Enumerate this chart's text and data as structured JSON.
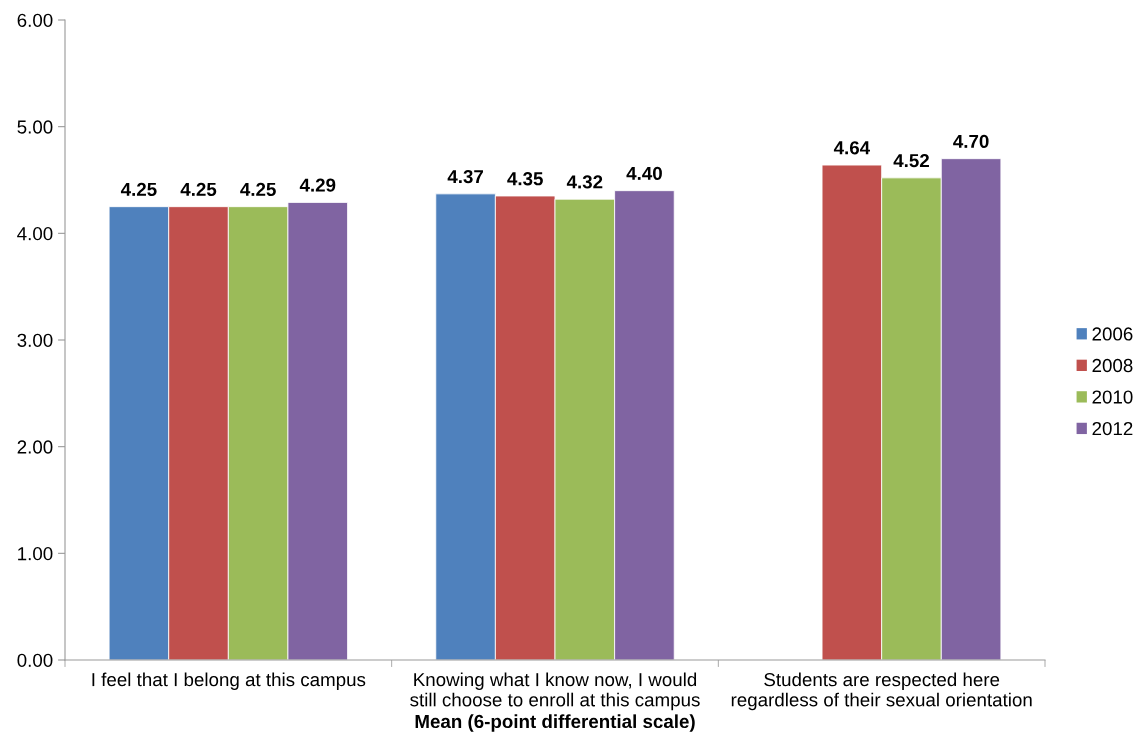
{
  "chart_data": {
    "type": "bar",
    "xlabel": "Mean (6-point differential scale)",
    "categories": [
      "I feel that I belong at this campus",
      "Knowing what I know now, I would\nstill choose to enroll at this campus",
      "Students are respected here\nregardless of their sexual orientation"
    ],
    "series": [
      {
        "name": "2006",
        "color": "#4f81bd",
        "values": [
          4.25,
          4.37,
          null
        ],
        "value_labels": [
          "4.25",
          "4.37",
          null
        ]
      },
      {
        "name": "2008",
        "color": "#c0504d",
        "values": [
          4.25,
          4.35,
          4.64
        ],
        "value_labels": [
          "4.25",
          "4.35",
          "4.64"
        ]
      },
      {
        "name": "2010",
        "color": "#9bbb59",
        "values": [
          4.25,
          4.32,
          4.52
        ],
        "value_labels": [
          "4.25",
          "4.32",
          "4.52"
        ]
      },
      {
        "name": "2012",
        "color": "#8064a2",
        "values": [
          4.29,
          4.4,
          4.7
        ],
        "value_labels": [
          "4.29",
          "4.40",
          "4.70"
        ]
      }
    ],
    "ylim": [
      0,
      6
    ],
    "yticks": [
      {
        "value": 0,
        "label": "0.00"
      },
      {
        "value": 1,
        "label": "1.00"
      },
      {
        "value": 2,
        "label": "2.00"
      },
      {
        "value": 3,
        "label": "3.00"
      },
      {
        "value": 4,
        "label": "4.00"
      },
      {
        "value": 5,
        "label": "5.00"
      },
      {
        "value": 6,
        "label": "6.00"
      }
    ],
    "grid": false,
    "legend": "right"
  }
}
